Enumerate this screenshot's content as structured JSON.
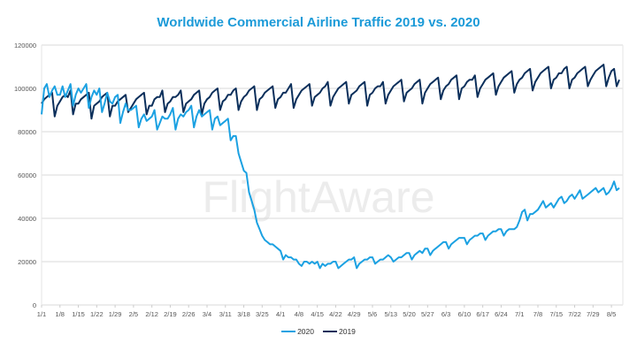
{
  "chart_data": {
    "type": "line",
    "title": "Worldwide Commercial Airline Traffic 2019 vs. 2020",
    "xlabel": "",
    "ylabel": "",
    "ylim": [
      0,
      120000
    ],
    "yticks": [
      "0",
      "20000",
      "40000",
      "60000",
      "80000",
      "100000",
      "120000"
    ],
    "xtick_labels": [
      "1/1",
      "1/8",
      "1/15",
      "1/22",
      "1/29",
      "2/5",
      "2/12",
      "2/19",
      "2/26",
      "3/4",
      "3/11",
      "3/18",
      "3/25",
      "4/1",
      "4/8",
      "4/15",
      "4/22",
      "4/29",
      "5/6",
      "5/13",
      "5/20",
      "5/27",
      "6/3",
      "6/10",
      "6/17",
      "6/24",
      "7/1",
      "7/8",
      "7/15",
      "7/22",
      "7/29",
      "8/5"
    ],
    "x_start": "1/1",
    "x_end": "8/9",
    "grid": "horizontal",
    "legend_position": "bottom",
    "watermark": "FlightAware",
    "series": [
      {
        "name": "2020",
        "color": "#1ba1e2",
        "values": [
          88000,
          100000,
          102000,
          96000,
          99000,
          101000,
          97000,
          97000,
          101000,
          96000,
          99000,
          102000,
          92000,
          97000,
          100000,
          98000,
          100000,
          102000,
          91000,
          96000,
          99000,
          97000,
          100000,
          89000,
          93000,
          98000,
          94000,
          93000,
          96000,
          97000,
          84000,
          89000,
          93000,
          90000,
          90000,
          91000,
          92000,
          82000,
          86000,
          88000,
          85000,
          86000,
          87000,
          90000,
          81000,
          84000,
          87000,
          86000,
          86000,
          88000,
          91000,
          81000,
          86000,
          88000,
          87000,
          89000,
          90000,
          92000,
          82000,
          87000,
          90000,
          87000,
          88000,
          89000,
          90000,
          81000,
          86000,
          87000,
          83000,
          84000,
          85000,
          86000,
          76000,
          78000,
          78000,
          70000,
          66000,
          62000,
          61000,
          52000,
          48000,
          44000,
          38000,
          35000,
          32000,
          30000,
          29000,
          28000,
          28000,
          27000,
          26000,
          25000,
          21000,
          23000,
          22000,
          22000,
          21000,
          21000,
          19000,
          18000,
          20000,
          20000,
          19000,
          20000,
          19000,
          20000,
          17000,
          19000,
          18000,
          19000,
          19000,
          20000,
          20000,
          17000,
          18000,
          19000,
          20000,
          21000,
          21000,
          22000,
          17000,
          19000,
          20000,
          21000,
          21000,
          22000,
          22000,
          19000,
          20000,
          21000,
          21000,
          22000,
          23000,
          22000,
          20000,
          21000,
          22000,
          22000,
          23000,
          24000,
          24000,
          21000,
          23000,
          24000,
          25000,
          24000,
          26000,
          26000,
          23000,
          25000,
          26000,
          27000,
          28000,
          29000,
          29000,
          26000,
          28000,
          29000,
          30000,
          31000,
          31000,
          31000,
          28000,
          30000,
          31000,
          32000,
          32000,
          33000,
          33000,
          30000,
          32000,
          33000,
          34000,
          34000,
          35000,
          35000,
          32000,
          34000,
          35000,
          35000,
          35000,
          36000,
          39000,
          43000,
          44000,
          39000,
          42000,
          42000,
          43000,
          44000,
          46000,
          48000,
          45000,
          46000,
          47000,
          45000,
          47000,
          49000,
          50000,
          47000,
          48000,
          50000,
          51000,
          49000,
          51000,
          53000,
          49000,
          50000,
          51000,
          52000,
          53000,
          54000,
          52000,
          53000,
          54000,
          51000,
          52000,
          54000,
          57000,
          53000,
          54000
        ]
      },
      {
        "name": "2019",
        "color": "#0b2f5b",
        "values": [
          93000,
          95000,
          96000,
          97000,
          98000,
          87000,
          92000,
          94000,
          96000,
          97000,
          96000,
          99000,
          88000,
          93000,
          93000,
          95000,
          96000,
          97000,
          98000,
          86000,
          92000,
          93000,
          94000,
          96000,
          97000,
          98000,
          87000,
          92000,
          92000,
          94000,
          95000,
          96000,
          97000,
          89000,
          91000,
          93000,
          95000,
          96000,
          97000,
          98000,
          88000,
          92000,
          92000,
          95000,
          96000,
          96000,
          99000,
          89000,
          93000,
          94000,
          96000,
          96000,
          97000,
          99000,
          89000,
          93000,
          94000,
          95000,
          97000,
          98000,
          99000,
          88000,
          93000,
          95000,
          96000,
          98000,
          99000,
          100000,
          90000,
          94000,
          95000,
          97000,
          97000,
          99000,
          100000,
          90000,
          94000,
          96000,
          97000,
          99000,
          100000,
          101000,
          90000,
          95000,
          96000,
          98000,
          99000,
          100000,
          101000,
          91000,
          95000,
          96000,
          98000,
          98000,
          100000,
          102000,
          91000,
          95000,
          97000,
          99000,
          100000,
          101000,
          102000,
          92000,
          96000,
          97000,
          98000,
          100000,
          101000,
          103000,
          92000,
          96000,
          98000,
          100000,
          101000,
          102000,
          103000,
          93000,
          97000,
          98000,
          99000,
          101000,
          102000,
          103000,
          92000,
          97000,
          98000,
          100000,
          101000,
          101000,
          103000,
          93000,
          97000,
          99000,
          101000,
          102000,
          103000,
          104000,
          94000,
          98000,
          99000,
          100000,
          102000,
          103000,
          104000,
          93000,
          98000,
          100000,
          102000,
          103000,
          104000,
          105000,
          95000,
          99000,
          101000,
          102000,
          104000,
          105000,
          106000,
          95000,
          100000,
          101000,
          103000,
          104000,
          104000,
          106000,
          96000,
          100000,
          102000,
          104000,
          105000,
          106000,
          107000,
          97000,
          101000,
          103000,
          105000,
          106000,
          107000,
          108000,
          98000,
          102000,
          104000,
          105000,
          107000,
          108000,
          109000,
          99000,
          103000,
          105000,
          107000,
          108000,
          109000,
          110000,
          100000,
          104000,
          105000,
          107000,
          107000,
          109000,
          110000,
          100000,
          104000,
          105000,
          107000,
          108000,
          109000,
          110000,
          101000,
          104000,
          106000,
          108000,
          109000,
          110000,
          111000,
          101000,
          105000,
          108000,
          109000,
          101000,
          104000
        ]
      }
    ]
  }
}
